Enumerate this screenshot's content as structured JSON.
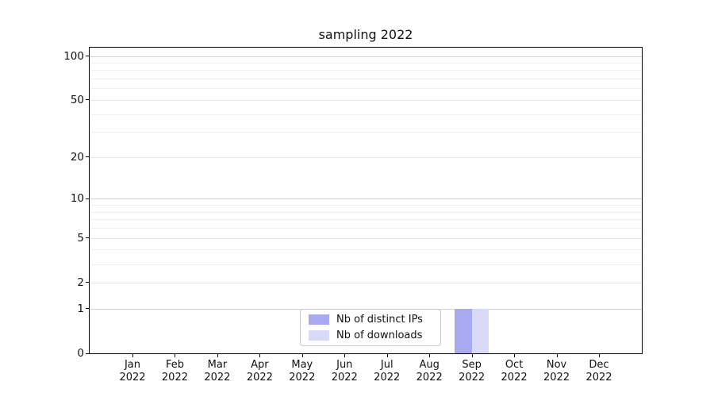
{
  "title": "sampling 2022",
  "chart_data": {
    "type": "bar",
    "title": "sampling 2022",
    "categories": [
      "Jan",
      "Feb",
      "Mar",
      "Apr",
      "May",
      "Jun",
      "Jul",
      "Aug",
      "Sep",
      "Oct",
      "Nov",
      "Dec"
    ],
    "category_year": "2022",
    "series": [
      {
        "name": "Nb of distinct IPs",
        "color": "#a9a9ef",
        "values": [
          0,
          0,
          0,
          0,
          0,
          0,
          0,
          0,
          1,
          0,
          0,
          0
        ]
      },
      {
        "name": "Nb of downloads",
        "color": "#d9d9f8",
        "values": [
          0,
          0,
          0,
          0,
          0,
          0,
          0,
          0,
          1,
          0,
          0,
          0
        ]
      }
    ],
    "yscale": "log1p",
    "ylim": [
      0,
      114
    ],
    "yticks": [
      0,
      1,
      2,
      5,
      10,
      20,
      50,
      100
    ],
    "yticks_major": [
      1,
      10,
      100
    ],
    "yticks_minor": [
      3,
      4,
      6,
      7,
      8,
      9,
      30,
      40,
      60,
      70,
      80,
      90
    ],
    "xlabel": "",
    "ylabel": "",
    "grid": "horizontal",
    "legend_position": "lower center"
  },
  "colors": {
    "grid_major": "#d2d2d2",
    "grid_tick": "#e7e7e7",
    "grid_minor": "#f0f0f0",
    "spine": "#000000",
    "background": "#ffffff"
  }
}
